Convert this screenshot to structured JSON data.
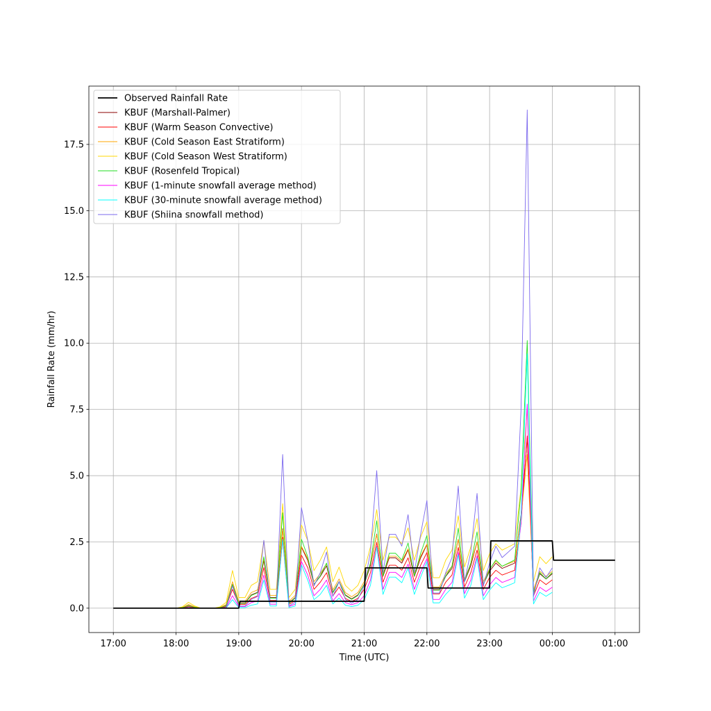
{
  "chart_data": {
    "type": "line",
    "xlabel": "Time (UTC)",
    "ylabel": "Rainfall Rate (mm/hr)",
    "xlim": [
      -0.39,
      8.39
    ],
    "ylim": [
      -0.92,
      19.7
    ],
    "xticks": [
      {
        "value": 0,
        "label": "17:00"
      },
      {
        "value": 1,
        "label": "18:00"
      },
      {
        "value": 2,
        "label": "19:00"
      },
      {
        "value": 3,
        "label": "20:00"
      },
      {
        "value": 4,
        "label": "21:00"
      },
      {
        "value": 5,
        "label": "22:00"
      },
      {
        "value": 6,
        "label": "23:00"
      },
      {
        "value": 7,
        "label": "00:00"
      },
      {
        "value": 8,
        "label": "01:00"
      }
    ],
    "yticks": [
      {
        "value": 0,
        "label": "0.0"
      },
      {
        "value": 2.5,
        "label": "2.5"
      },
      {
        "value": 5,
        "label": "5.0"
      },
      {
        "value": 7.5,
        "label": "7.5"
      },
      {
        "value": 10,
        "label": "10.0"
      },
      {
        "value": 12.5,
        "label": "12.5"
      },
      {
        "value": 15,
        "label": "15.0"
      },
      {
        "value": 17.5,
        "label": "17.5"
      }
    ],
    "grid": true,
    "legend": "upper left",
    "x": [
      1.0,
      1.1,
      1.2,
      1.3,
      1.4,
      1.5,
      1.6,
      1.7,
      1.8,
      1.9,
      2.0,
      2.1,
      2.2,
      2.3,
      2.4,
      2.5,
      2.6,
      2.7,
      2.8,
      2.9,
      3.0,
      3.1,
      3.2,
      3.3,
      3.4,
      3.5,
      3.6,
      3.7,
      3.8,
      3.9,
      4.0,
      4.1,
      4.2,
      4.3,
      4.4,
      4.5,
      4.6,
      4.7,
      4.8,
      4.9,
      5.0,
      5.1,
      5.2,
      5.3,
      5.4,
      5.5,
      5.6,
      5.7,
      5.8,
      5.9,
      6.0,
      6.1,
      6.2,
      6.3,
      6.4,
      6.5,
      6.6,
      6.7,
      6.8,
      6.9,
      7.0
    ],
    "series": [
      {
        "name": "Observed Rainfall Rate",
        "color": "#000000",
        "width": 1.8,
        "x": [
          0,
          2,
          2.02,
          4,
          4.02,
          5,
          5.02,
          6,
          6.02,
          7,
          7.02,
          8
        ],
        "values": [
          0,
          0,
          0.26,
          0.26,
          1.52,
          1.52,
          0.76,
          0.76,
          2.54,
          2.54,
          1.81,
          1.81
        ]
      },
      {
        "name": "KBUF (Marshall-Palmer)",
        "color": "#8b0000",
        "width": 0.9,
        "values": [
          0,
          0.02,
          0.1,
          0.03,
          0,
          0,
          0,
          0.02,
          0.1,
          0.9,
          0.2,
          0.2,
          0.5,
          0.6,
          1.8,
          0.4,
          0.4,
          3.0,
          0.2,
          0.4,
          2.3,
          1.8,
          0.9,
          1.2,
          1.6,
          0.6,
          1.0,
          0.5,
          0.35,
          0.5,
          0.9,
          1.6,
          2.8,
          1.2,
          1.9,
          1.9,
          1.7,
          2.2,
          1.2,
          1.9,
          2.4,
          0.7,
          0.7,
          1.2,
          1.5,
          2.6,
          1.0,
          1.6,
          2.5,
          0.9,
          1.4,
          1.7,
          1.5,
          1.6,
          1.7,
          3.5,
          6.4,
          0.6,
          1.3,
          1.1,
          1.3
        ]
      },
      {
        "name": "KBUF (Warm Season Convective)",
        "color": "#ff0000",
        "width": 0.9,
        "values": [
          0,
          0.01,
          0.06,
          0.02,
          0,
          0,
          0,
          0.01,
          0.06,
          0.71,
          0.14,
          0.14,
          0.37,
          0.46,
          1.53,
          0.29,
          0.29,
          2.68,
          0.14,
          0.29,
          2.0,
          1.53,
          0.71,
          0.98,
          1.34,
          0.46,
          0.8,
          0.37,
          0.25,
          0.37,
          0.71,
          1.34,
          2.48,
          0.98,
          1.62,
          1.62,
          1.43,
          1.9,
          0.98,
          1.62,
          2.1,
          0.54,
          0.54,
          0.98,
          1.25,
          2.29,
          0.8,
          1.34,
          2.19,
          0.71,
          1.16,
          1.43,
          1.25,
          1.34,
          1.43,
          3.18,
          6.5,
          0.46,
          1.07,
          0.89,
          1.07
        ]
      },
      {
        "name": "KBUF (Cold Season East Stratiform)",
        "color": "#ffa500",
        "width": 0.9,
        "values": [
          0,
          0.03,
          0.14,
          0.05,
          0,
          0,
          0,
          0.03,
          0.14,
          1.0,
          0.26,
          0.26,
          0.59,
          0.69,
          1.87,
          0.48,
          0.48,
          2.96,
          0.26,
          0.48,
          2.33,
          1.87,
          1.0,
          1.3,
          1.68,
          0.69,
          1.1,
          0.59,
          0.43,
          0.59,
          1.0,
          1.68,
          2.78,
          1.3,
          1.96,
          1.96,
          1.77,
          2.24,
          1.3,
          1.96,
          2.42,
          0.8,
          0.8,
          1.3,
          1.58,
          2.6,
          1.1,
          1.68,
          2.51,
          1.0,
          1.49,
          1.77,
          1.58,
          1.68,
          1.77,
          3.4,
          5.8,
          0.69,
          1.39,
          1.2,
          1.39
        ]
      },
      {
        "name": "KBUF (Cold Season West Stratiform)",
        "color": "#ffd700",
        "width": 0.9,
        "values": [
          0,
          0.05,
          0.22,
          0.08,
          0,
          0,
          0,
          0.05,
          0.22,
          1.42,
          0.4,
          0.4,
          0.86,
          1.0,
          2.55,
          0.71,
          0.71,
          3.94,
          0.4,
          0.71,
          3.14,
          2.55,
          1.42,
          1.81,
          2.31,
          1.0,
          1.55,
          0.86,
          0.64,
          0.86,
          1.42,
          2.31,
          3.72,
          1.81,
          2.68,
          2.68,
          2.43,
          3.03,
          1.81,
          2.68,
          3.26,
          1.15,
          1.15,
          1.81,
          2.19,
          3.49,
          1.55,
          2.31,
          3.38,
          1.42,
          2.06,
          2.43,
          2.19,
          2.31,
          2.43,
          4.5,
          7.5,
          1.0,
          1.94,
          1.68,
          1.94
        ]
      },
      {
        "name": "KBUF (Rosenfeld Tropical)",
        "color": "#22dd22",
        "width": 0.9,
        "values": [
          0,
          0.02,
          0.09,
          0.03,
          0,
          0,
          0,
          0.02,
          0.09,
          0.89,
          0.18,
          0.18,
          0.48,
          0.58,
          1.94,
          0.38,
          0.38,
          3.6,
          0.18,
          0.38,
          2.6,
          1.94,
          0.89,
          1.22,
          1.7,
          0.58,
          1.0,
          0.48,
          0.33,
          0.48,
          0.89,
          1.7,
          3.3,
          1.22,
          2.07,
          2.07,
          1.82,
          2.46,
          1.22,
          2.07,
          2.74,
          0.68,
          0.68,
          1.22,
          1.58,
          3.02,
          1.0,
          1.7,
          2.88,
          0.89,
          1.46,
          1.82,
          1.58,
          1.7,
          1.82,
          4.38,
          10.1,
          0.58,
          1.34,
          1.11,
          1.34
        ]
      },
      {
        "name": "KBUF (1-minute snowfall average method)",
        "color": "#ff00ff",
        "width": 0.9,
        "values": [
          0,
          0.01,
          0.02,
          0.01,
          0,
          0,
          0,
          0.01,
          0.02,
          0.47,
          0.06,
          0.06,
          0.21,
          0.27,
          1.25,
          0.15,
          0.15,
          2.56,
          0.06,
          0.15,
          1.76,
          1.25,
          0.47,
          0.71,
          1.06,
          0.27,
          0.55,
          0.21,
          0.13,
          0.21,
          0.47,
          1.06,
          2.33,
          0.71,
          1.35,
          1.35,
          1.16,
          1.66,
          0.71,
          1.35,
          1.87,
          0.33,
          0.33,
          0.71,
          0.97,
          2.1,
          0.55,
          1.06,
          1.98,
          0.47,
          0.88,
          1.16,
          0.97,
          1.06,
          1.16,
          3.19,
          7.7,
          0.27,
          0.79,
          0.63,
          0.79
        ]
      },
      {
        "name": "KBUF (30-minute snowfall average method)",
        "color": "#00ffff",
        "width": 0.9,
        "values": [
          0,
          0,
          0.01,
          0,
          0,
          0,
          0,
          0,
          0.01,
          0.32,
          0.02,
          0.02,
          0.11,
          0.16,
          1.06,
          0.08,
          0.08,
          2.6,
          0.02,
          0.08,
          1.63,
          1.06,
          0.32,
          0.52,
          0.86,
          0.16,
          0.38,
          0.11,
          0.06,
          0.11,
          0.32,
          0.86,
          2.3,
          0.52,
          1.17,
          1.17,
          0.96,
          1.51,
          0.52,
          1.17,
          1.76,
          0.2,
          0.2,
          0.52,
          0.77,
          2.02,
          0.38,
          0.86,
          1.89,
          0.32,
          0.68,
          0.96,
          0.77,
          0.86,
          0.96,
          3.4,
          9.6,
          0.16,
          0.6,
          0.45,
          0.6
        ]
      },
      {
        "name": "KBUF (Shiina snowfall method)",
        "color": "#7b68ee",
        "width": 0.9,
        "values": [
          0,
          0,
          0.03,
          0,
          0,
          0,
          0,
          0,
          0.03,
          0.84,
          0.08,
          0.08,
          0.33,
          0.44,
          2.56,
          0.23,
          0.23,
          5.8,
          0.08,
          0.23,
          3.79,
          2.56,
          0.84,
          1.34,
          2.12,
          0.44,
          1.0,
          0.33,
          0.19,
          0.33,
          0.84,
          2.12,
          5.19,
          1.34,
          2.79,
          2.79,
          2.34,
          3.53,
          1.34,
          2.79,
          4.06,
          0.57,
          0.57,
          1.34,
          1.91,
          4.61,
          1.0,
          2.12,
          4.33,
          0.84,
          1.71,
          2.34,
          1.91,
          2.12,
          2.34,
          7.42,
          18.8,
          0.44,
          1.52,
          1.16,
          1.52
        ]
      }
    ]
  }
}
